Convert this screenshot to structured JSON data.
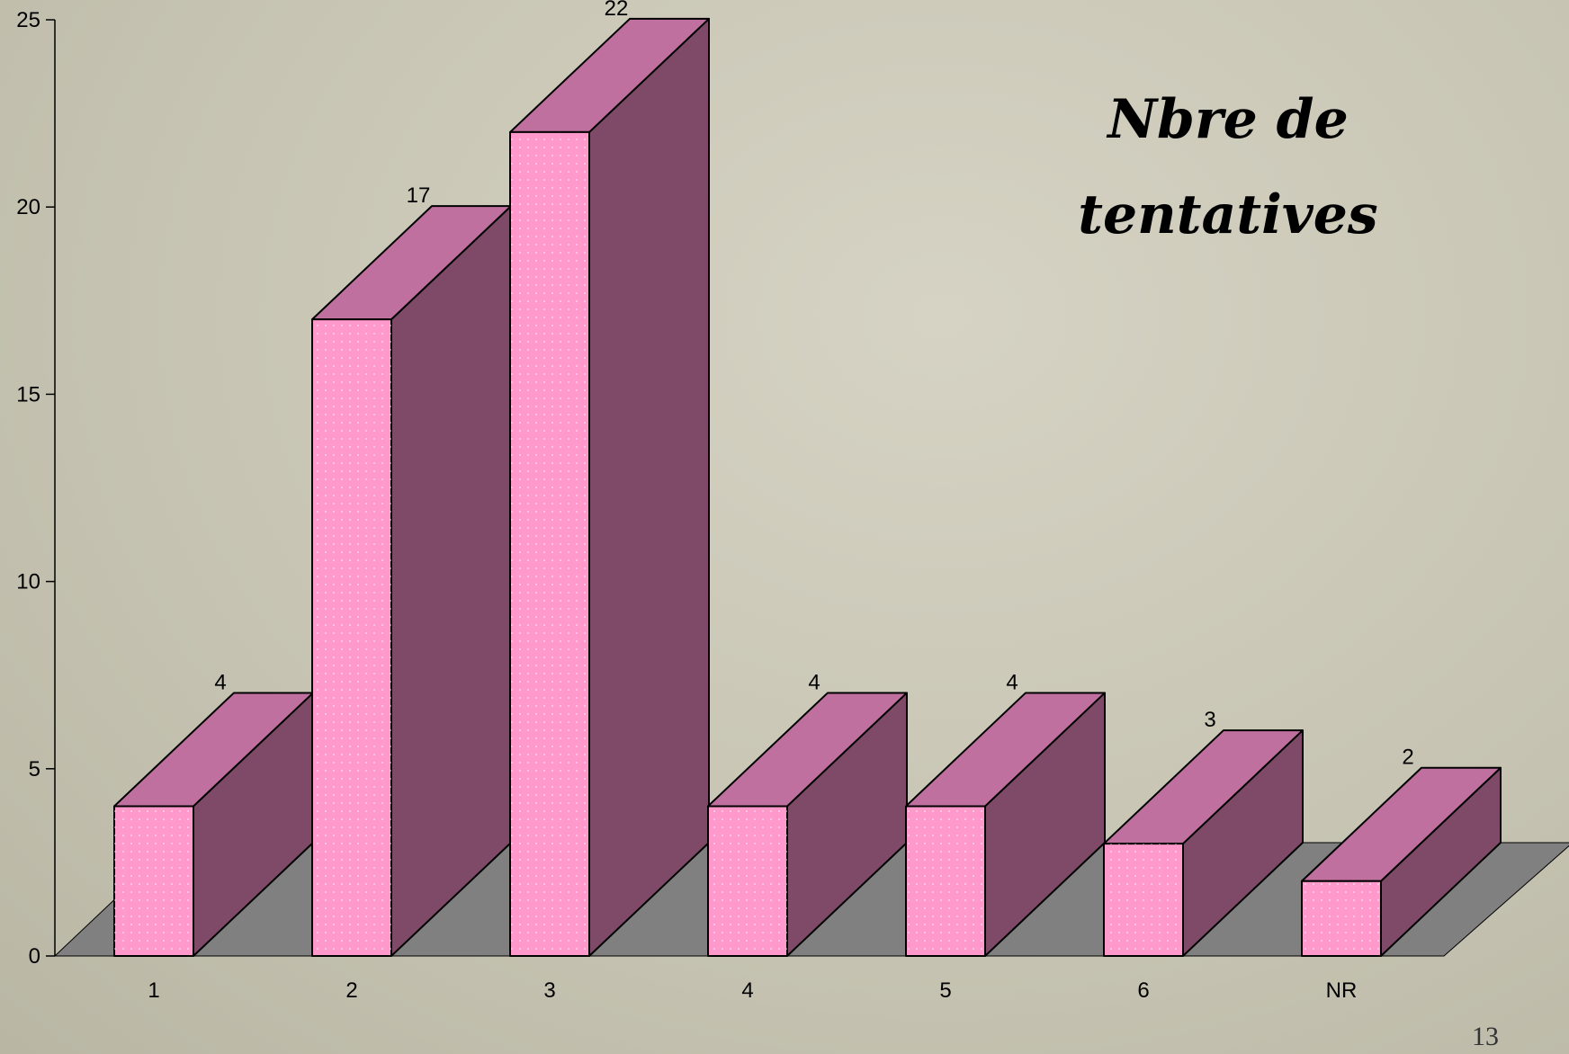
{
  "chart_data": {
    "type": "bar3d",
    "title": "Nbre de tentatives",
    "categories": [
      "1",
      "2",
      "3",
      "4",
      "5",
      "6",
      "NR"
    ],
    "values": [
      4,
      17,
      22,
      4,
      4,
      3,
      2
    ],
    "colors": {
      "front": "#ff99cc",
      "top": "#c0709f",
      "side": "#7e4a68",
      "floor": "#808080"
    },
    "ylim": [
      0,
      25
    ],
    "yticks": [
      0,
      5,
      10,
      15,
      20,
      25
    ]
  },
  "slide": {
    "page_number": "13"
  }
}
